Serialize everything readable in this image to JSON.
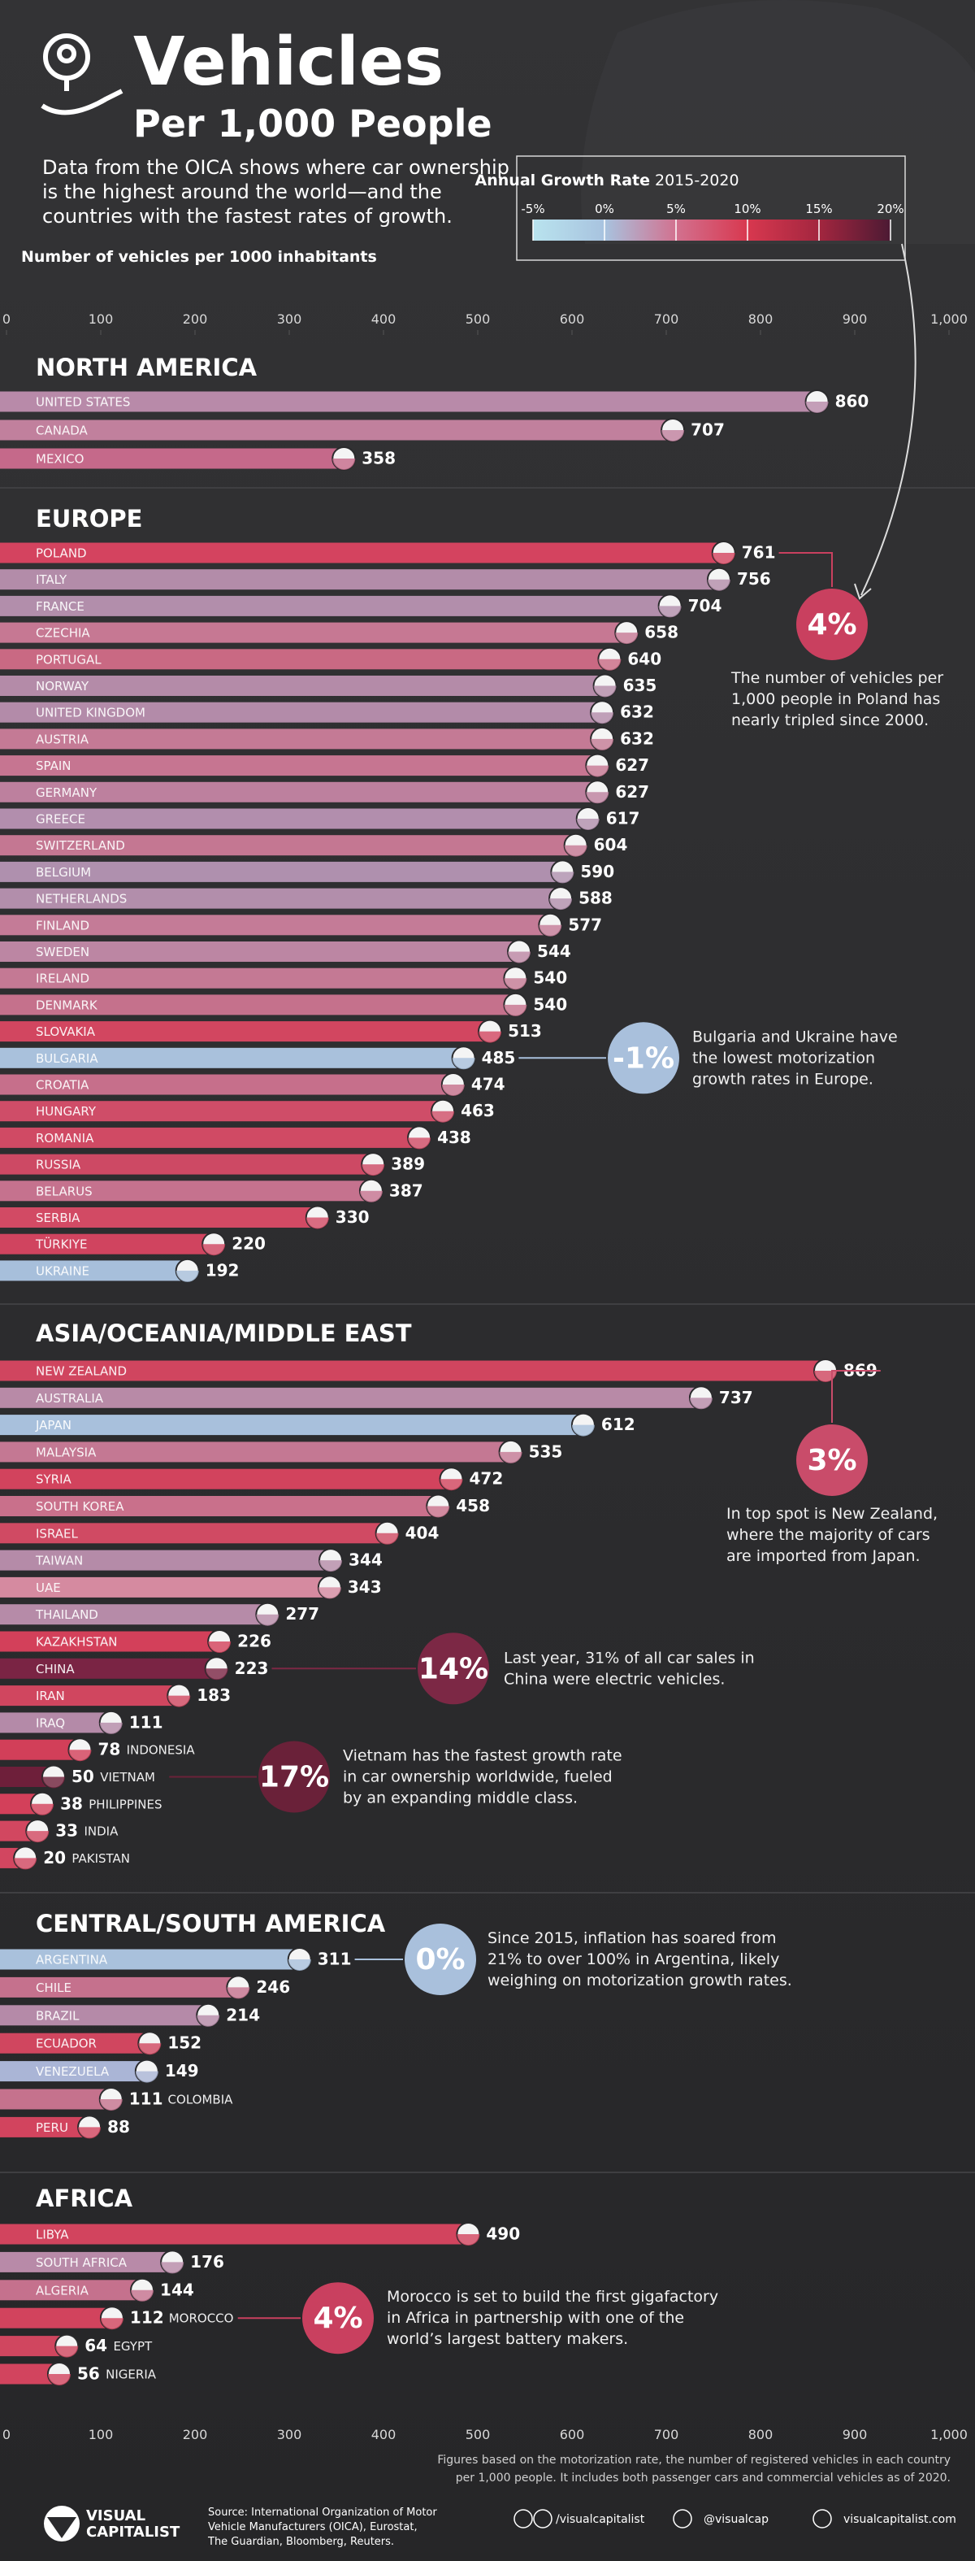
{
  "header": {
    "title": "Vehicles",
    "subtitle": "Per 1,000 People",
    "description": [
      "Data from the OICA shows where car ownership",
      "is the highest around the world—and the",
      "countries with the fastest rates of growth."
    ]
  },
  "colorbar": {
    "title": "Annual Growth Rate",
    "subtitle": "2015-2020",
    "ticks": [
      {
        "value": -5,
        "label": "-5%"
      },
      {
        "value": 0,
        "label": "0%"
      },
      {
        "value": 5,
        "label": "5%"
      },
      {
        "value": 10,
        "label": "10%"
      },
      {
        "value": 15,
        "label": "15%"
      },
      {
        "value": 20,
        "label": "20%"
      }
    ],
    "colors": [
      "#b9e3ee",
      "#a8c3df",
      "#d2718f",
      "#d8384f",
      "#a3263f",
      "#4c1a33"
    ]
  },
  "chart_data": {
    "type": "bar",
    "orientation": "horizontal",
    "axis_label": "Number of vehicles per 1000 inhabitants",
    "xlim": [
      0,
      1000
    ],
    "xticks": [
      0,
      100,
      200,
      300,
      400,
      500,
      600,
      700,
      800,
      900,
      {
        "value": 1000,
        "label": "1,000"
      }
    ],
    "groups": [
      {
        "name": "NORTH AMERICA",
        "categories": [
          "UNITED STATES",
          "CANADA",
          "MEXICO"
        ],
        "values": [
          860,
          707,
          358
        ],
        "colors": [
          "#b88aa9",
          "#c1809d",
          "#c5698a"
        ],
        "annotations": []
      },
      {
        "name": "EUROPE",
        "categories": [
          "POLAND",
          "ITALY",
          "FRANCE",
          "CZECHIA",
          "PORTUGAL",
          "NORWAY",
          "UNITED KINGDOM",
          "AUSTRIA",
          "SPAIN",
          "GERMANY",
          "GREECE",
          "SWITZERLAND",
          "BELGIUM",
          "NETHERLANDS",
          "FINLAND",
          "SWEDEN",
          "IRELAND",
          "DENMARK",
          "SLOVAKIA",
          "BULGARIA",
          "CROATIA",
          "HUNGARY",
          "ROMANIA",
          "RUSSIA",
          "BELARUS",
          "SERBIA",
          "TÜRKIYE",
          "UKRAINE"
        ],
        "values": [
          761,
          756,
          704,
          658,
          640,
          635,
          632,
          632,
          627,
          627,
          617,
          604,
          590,
          588,
          577,
          544,
          540,
          540,
          513,
          485,
          474,
          463,
          438,
          389,
          387,
          330,
          220,
          192
        ],
        "colors": [
          "#d4435f",
          "#b38ca9",
          "#b28eab",
          "#c67893",
          "#c96983",
          "#b48ba8",
          "#b38ba9",
          "#c47a95",
          "#c67591",
          "#bd809e",
          "#b28ead",
          "#c47792",
          "#af90ae",
          "#b28eab",
          "#c47b97",
          "#bc86a3",
          "#c47994",
          "#c5718c",
          "#d24660",
          "#a9c1dc",
          "#c66f8b",
          "#cf4d68",
          "#d04a64",
          "#cd4964",
          "#c5728e",
          "#d24a64",
          "#d0445f",
          "#a7bfdb"
        ],
        "annotations": [
          {
            "label": "4%",
            "color": "#c9405f",
            "text": [
              "The number of vehicles per",
              "1,000 people in Poland has",
              "nearly tripled since 2000."
            ]
          },
          {
            "label": "-1%",
            "color": "#a9c0dc",
            "text": [
              "Bulgaria and Ukraine have",
              "the lowest motorization",
              "growth rates in Europe."
            ]
          }
        ]
      },
      {
        "name": "ASIA/OCEANIA/MIDDLE EAST",
        "categories": [
          "NEW ZEALAND",
          "AUSTRALIA",
          "JAPAN",
          "MALAYSIA",
          "SYRIA",
          "SOUTH KOREA",
          "ISRAEL",
          "TAIWAN",
          "UAE",
          "THAILAND",
          "KAZAKHSTAN",
          "CHINA",
          "IRAN",
          "IRAQ",
          "INDONESIA",
          "VIETNAM",
          "PHILIPPINES",
          "INDIA",
          "PAKISTAN"
        ],
        "values": [
          869,
          737,
          612,
          535,
          472,
          458,
          404,
          344,
          343,
          277,
          226,
          223,
          183,
          111,
          78,
          50,
          38,
          33,
          20
        ],
        "colors": [
          "#d0455f",
          "#b88aa7",
          "#a8c0dc",
          "#c47893",
          "#d2435d",
          "#c9708b",
          "#d04a63",
          "#b58ba8",
          "#d58aa0",
          "#b68ba8",
          "#d3405a",
          "#7a2444",
          "#d0465f",
          "#b48aa8",
          "#d23f59",
          "#6e1f3a",
          "#d3405a",
          "#d24760",
          "#d24660"
        ],
        "annotations": [
          {
            "label": "3%",
            "color": "#c94c6a",
            "text": [
              "In top spot is New Zealand,",
              "where the majority of cars",
              "are imported from Japan."
            ]
          },
          {
            "label": "14%",
            "color": "#7c2845",
            "text": [
              "Last year, 31% of all car sales in",
              "China were electric vehicles."
            ]
          },
          {
            "label": "17%",
            "color": "#6a2139",
            "text": [
              "Vietnam has the fastest growth rate",
              "in car ownership worldwide, fueled",
              "by an expanding middle class."
            ]
          }
        ]
      },
      {
        "name": "CENTRAL/SOUTH AMERICA",
        "categories": [
          "ARGENTINA",
          "CHILE",
          "BRAZIL",
          "ECUADOR",
          "VENEZUELA",
          "COLOMBIA",
          "PERU"
        ],
        "values": [
          311,
          246,
          214,
          152,
          149,
          111,
          88
        ],
        "colors": [
          "#a9c1dc",
          "#c5718d",
          "#b58aa8",
          "#d0465f",
          "#aab5d6",
          "#c5728d",
          "#d2445e"
        ],
        "annotations": [
          {
            "label": "0%",
            "color": "#a9c0dc",
            "text": [
              "Since 2015, inflation has soared from",
              "21% to over 100% in Argentina, likely",
              "weighing on motorization growth rates."
            ]
          }
        ]
      },
      {
        "name": "AFRICA",
        "categories": [
          "LIBYA",
          "SOUTH AFRICA",
          "ALGERIA",
          "MOROCCO",
          "EGYPT",
          "NIGERIA"
        ],
        "values": [
          490,
          176,
          144,
          112,
          64,
          56
        ],
        "colors": [
          "#d2445e",
          "#b88aa8",
          "#c5718d",
          "#d2435d",
          "#d0465f",
          "#d2445e"
        ],
        "annotations": [
          {
            "label": "4%",
            "color": "#c9405f",
            "text": [
              "Morocco is set to build the first gigafactory",
              "in Africa in partnership with one of the",
              "world’s largest battery makers."
            ]
          }
        ]
      }
    ]
  },
  "footer": {
    "note": [
      "Figures based on the motorization rate, the number of registered vehicles in each country",
      "per 1,000 people. It includes both passenger cars and commercial vehicles as of 2020."
    ],
    "source": [
      "Source: International Organization of Motor",
      "Vehicle Manufacturers (OICA), Eurostat,",
      "The Guardian, Bloomberg, Reuters."
    ],
    "logo": [
      "VISUAL",
      "CAPITALIST"
    ],
    "social": [
      "/visualcapitalist",
      "@visualcap",
      "visualcapitalist.com"
    ]
  }
}
